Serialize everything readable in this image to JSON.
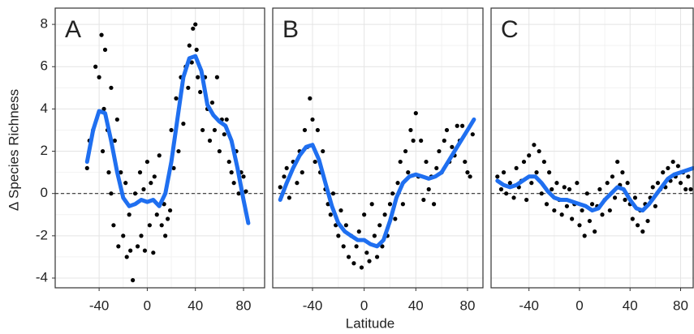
{
  "chart_data": {
    "type": "scatter",
    "xlabel": "Latitude",
    "ylabel": "Δ Species Richness",
    "ylim": [
      -4.46,
      8.77
    ],
    "yticks": [
      -4,
      -2,
      0,
      2,
      4,
      6,
      8
    ],
    "hline": 0,
    "grid": true,
    "panels": [
      {
        "title": "A",
        "xlim": [
          -76.5,
          98.2
        ],
        "xticks": [
          -40,
          0,
          40,
          80
        ],
        "series": [
          {
            "mark": "point",
            "color": "#000000",
            "x": [
              -50,
              -48,
              -45,
              -43,
              -40,
              -38,
              -37,
              -36,
              -35,
              -33,
              -32,
              -30,
              -30,
              -28,
              -27,
              -25,
              -24,
              -22,
              -20,
              -18,
              -17,
              -15,
              -14,
              -12,
              -10,
              -8,
              -6,
              -5,
              -3,
              -2,
              0,
              2,
              3,
              5,
              6,
              8,
              10,
              12,
              14,
              15,
              17,
              19,
              20,
              22,
              24,
              26,
              28,
              30,
              32,
              34,
              35,
              37,
              38,
              40,
              41,
              42,
              44,
              46,
              48,
              50,
              52,
              54,
              56,
              58,
              60,
              62,
              64,
              66,
              68,
              70,
              72,
              74,
              76,
              78,
              80,
              82
            ],
            "values": [
              1.2,
              2.5,
              3,
              6,
              5.5,
              7.5,
              2,
              4,
              6.8,
              3,
              1,
              0,
              5,
              -1.5,
              2.5,
              3.5,
              -2.5,
              1,
              -2,
              0.5,
              -3,
              -1,
              -2.7,
              -4.1,
              0,
              -2.5,
              1,
              -2,
              0.2,
              -2.7,
              1.5,
              -1.5,
              0.5,
              -2.8,
              0.8,
              -1,
              1.8,
              -1.5,
              -0.5,
              -2,
              -1.2,
              -0.8,
              3,
              1.2,
              4.5,
              2,
              5.5,
              3.3,
              6,
              5,
              7,
              6.2,
              7.8,
              8,
              6.8,
              5.5,
              4.8,
              3,
              5.5,
              4,
              2.5,
              4.3,
              3,
              5.5,
              2,
              3.5,
              2.8,
              3.5,
              1.5,
              1,
              0.5,
              2,
              0,
              1,
              0.8,
              0.1
            ]
          },
          {
            "mark": "line",
            "color": "#1f6ff0",
            "x": [
              -50,
              -45,
              -40,
              -35,
              -30,
              -25,
              -20,
              -15,
              -10,
              -5,
              0,
              5,
              10,
              15,
              20,
              25,
              30,
              35,
              40,
              45,
              50,
              55,
              60,
              65,
              70,
              75,
              80,
              84
            ],
            "values": [
              1.5,
              3,
              3.9,
              3.8,
              2.5,
              1,
              -0.2,
              -0.6,
              -0.5,
              -0.3,
              -0.4,
              -0.3,
              -0.6,
              0,
              1.5,
              3.5,
              5.5,
              6.4,
              6.5,
              5.8,
              4.2,
              3.7,
              3.4,
              3.2,
              2.5,
              1.2,
              -0.3,
              -1.4
            ]
          }
        ]
      },
      {
        "title": "B",
        "xlim": [
          -70.8,
          92.6
        ],
        "xticks": [
          -40,
          0,
          40,
          80
        ],
        "series": [
          {
            "mark": "point",
            "color": "#000000",
            "x": [
              -65,
              -62,
              -60,
              -58,
              -55,
              -52,
              -50,
              -48,
              -46,
              -44,
              -42,
              -40,
              -38,
              -36,
              -34,
              -32,
              -30,
              -28,
              -26,
              -24,
              -22,
              -20,
              -18,
              -16,
              -14,
              -12,
              -10,
              -8,
              -6,
              -4,
              -2,
              0,
              2,
              4,
              6,
              8,
              10,
              12,
              14,
              16,
              18,
              20,
              22,
              24,
              26,
              28,
              30,
              32,
              34,
              36,
              38,
              40,
              42,
              44,
              46,
              48,
              50,
              52,
              54,
              56,
              58,
              60,
              62,
              64,
              66,
              68,
              70,
              72,
              74,
              76,
              78,
              80,
              82,
              84
            ],
            "values": [
              0.3,
              0.8,
              1.2,
              -0.2,
              1.5,
              0.5,
              2,
              1,
              3,
              2.2,
              4.5,
              3.5,
              1.5,
              3,
              1,
              2,
              0.2,
              -0.5,
              -1,
              0,
              -1.5,
              -2,
              -0.8,
              -2.5,
              -1.5,
              -3,
              -2,
              -3.3,
              -2.5,
              -1.8,
              -3.5,
              -1,
              -2.8,
              -3.2,
              -0.5,
              -2,
              -3,
              -1.5,
              -2.5,
              -1,
              -2,
              -0.5,
              0,
              -1.2,
              0.5,
              1.5,
              -0.5,
              2,
              1,
              3,
              2.5,
              3.8,
              0.8,
              2.5,
              -0.3,
              1.5,
              0.2,
              0.8,
              -0.5,
              1.2,
              2,
              1,
              2.5,
              3,
              1.5,
              2.2,
              1.8,
              3.2,
              2.5,
              3.2,
              1.5,
              1,
              0.8,
              2.8
            ]
          },
          {
            "mark": "line",
            "color": "#1f6ff0",
            "x": [
              -65,
              -60,
              -55,
              -50,
              -45,
              -40,
              -35,
              -30,
              -25,
              -20,
              -15,
              -10,
              -5,
              0,
              5,
              10,
              15,
              20,
              25,
              30,
              35,
              40,
              45,
              50,
              55,
              60,
              65,
              70,
              75,
              80,
              85
            ],
            "values": [
              -0.3,
              0.5,
              1.2,
              1.8,
              2.2,
              2.3,
              1.6,
              0.5,
              -0.6,
              -1.4,
              -1.8,
              -2,
              -2.2,
              -2.2,
              -2.4,
              -2.5,
              -2.2,
              -1.3,
              -0.2,
              0.5,
              0.8,
              0.9,
              0.8,
              0.7,
              0.8,
              1,
              1.5,
              2,
              2.5,
              3,
              3.5
            ]
          }
        ]
      },
      {
        "title": "C",
        "xlim": [
          -70,
          90.6
        ],
        "xticks": [
          -40,
          0,
          40,
          80
        ],
        "series": [
          {
            "mark": "point",
            "color": "#000000",
            "x": [
              -65,
              -62,
              -60,
              -58,
              -55,
              -52,
              -50,
              -48,
              -46,
              -44,
              -42,
              -40,
              -38,
              -36,
              -34,
              -32,
              -30,
              -28,
              -26,
              -24,
              -22,
              -20,
              -18,
              -16,
              -14,
              -12,
              -10,
              -8,
              -6,
              -4,
              -2,
              0,
              2,
              4,
              6,
              8,
              10,
              12,
              14,
              16,
              18,
              20,
              22,
              24,
              26,
              28,
              30,
              32,
              34,
              36,
              38,
              40,
              42,
              44,
              46,
              48,
              50,
              52,
              54,
              56,
              58,
              60,
              62,
              64,
              66,
              68,
              70,
              72,
              74,
              76,
              78,
              80,
              82,
              84,
              86,
              88
            ],
            "values": [
              0.8,
              0.2,
              1,
              0,
              0.5,
              -0.2,
              1.2,
              0.3,
              0.6,
              1.5,
              -0.3,
              1.8,
              0.5,
              2.3,
              1,
              2,
              0,
              1.5,
              -0.5,
              1,
              0.2,
              -0.8,
              0.5,
              -0.3,
              -1,
              0.3,
              -0.6,
              0.2,
              -1.2,
              -0.5,
              0.5,
              -1.5,
              -0.8,
              -2,
              0,
              -1.3,
              -0.5,
              -1.8,
              -0.6,
              0.2,
              -1,
              -0.3,
              0.5,
              -0.8,
              0.8,
              -0.2,
              1.5,
              0.4,
              1,
              -0.3,
              0.5,
              -0.5,
              -1.2,
              -0.2,
              -1.5,
              -0.8,
              -1.8,
              -0.5,
              -1.3,
              -0.2,
              0.3,
              -0.6,
              0.5,
              0.2,
              1,
              0.3,
              1.2,
              0.6,
              1.5,
              0.8,
              1.3,
              0.5,
              1,
              0.2,
              0.8,
              0.2
            ]
          },
          {
            "mark": "line",
            "color": "#1f6ff0",
            "x": [
              -65,
              -60,
              -55,
              -50,
              -45,
              -40,
              -35,
              -30,
              -25,
              -20,
              -15,
              -10,
              -5,
              0,
              5,
              10,
              15,
              20,
              25,
              30,
              35,
              40,
              45,
              50,
              55,
              60,
              65,
              70,
              75,
              80,
              85,
              90
            ],
            "values": [
              0.6,
              0.4,
              0.3,
              0.4,
              0.6,
              0.8,
              0.8,
              0.5,
              0.1,
              -0.2,
              -0.3,
              -0.3,
              -0.4,
              -0.5,
              -0.6,
              -0.8,
              -0.7,
              -0.3,
              0,
              0.3,
              0.2,
              -0.3,
              -0.7,
              -0.8,
              -0.5,
              -0.1,
              0.3,
              0.7,
              0.9,
              1,
              1.1,
              1.2
            ]
          }
        ]
      }
    ]
  }
}
